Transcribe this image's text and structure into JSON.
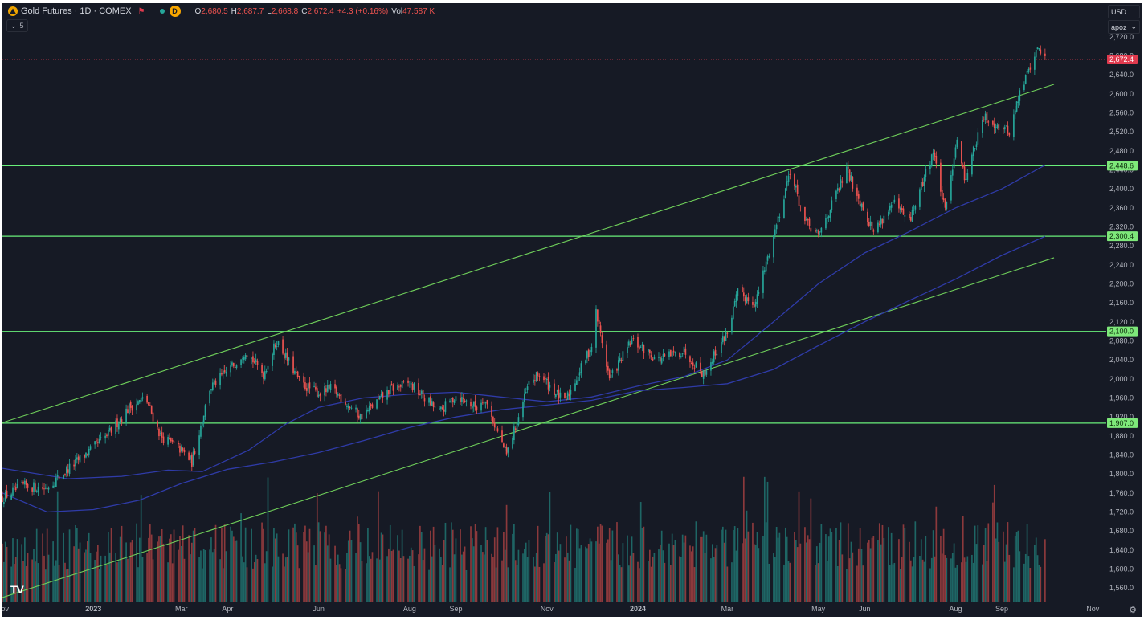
{
  "header": {
    "title": "Gold Futures · 1D · COMEX",
    "logo_letter": "⛰",
    "interval_badge": "D",
    "ohlc": [
      {
        "k": "O",
        "v": "2,680.5"
      },
      {
        "k": "H",
        "v": "2,687.7"
      },
      {
        "k": "L",
        "v": "2,668.8"
      },
      {
        "k": "C",
        "v": "2,672.4"
      },
      {
        "k": "",
        "v": "+4.3 (+0.16%)"
      },
      {
        "k": "Vol",
        "v": "47.587 K"
      }
    ],
    "indicator_toggle": "5"
  },
  "top_right": {
    "currency": "USD",
    "scale_mode": "apoz"
  },
  "colors": {
    "background": "#161a25",
    "up": "#26a69a",
    "down": "#ef5350",
    "level_line": "#69f07a",
    "channel_line": "#6fcf5a",
    "ma_line": "#2f3ba8",
    "axis_text": "#b2b5be",
    "last_price": "#e03a4e"
  },
  "chart_data": {
    "type": "candlestick",
    "symbol": "Gold Futures",
    "interval": "1D",
    "exchange": "COMEX",
    "ylim": [
      1540,
      2740
    ],
    "x_range": [
      "2022-11-01",
      "2024-11-10"
    ],
    "x_ticks": [
      {
        "date": "2022-11-01",
        "label": "Nov"
      },
      {
        "date": "2023-01-01",
        "label": "2023"
      },
      {
        "date": "2023-03-01",
        "label": "Mar"
      },
      {
        "date": "2023-04-01",
        "label": "Apr"
      },
      {
        "date": "2023-06-01",
        "label": "Jun"
      },
      {
        "date": "2023-08-01",
        "label": "Aug"
      },
      {
        "date": "2023-09-01",
        "label": "Sep"
      },
      {
        "date": "2023-11-01",
        "label": "Nov"
      },
      {
        "date": "2024-01-01",
        "label": "2024"
      },
      {
        "date": "2024-03-01",
        "label": "Mar"
      },
      {
        "date": "2024-05-01",
        "label": "May"
      },
      {
        "date": "2024-06-01",
        "label": "Jun"
      },
      {
        "date": "2024-08-01",
        "label": "Aug"
      },
      {
        "date": "2024-09-01",
        "label": "Sep"
      },
      {
        "date": "2024-11-01",
        "label": "Nov"
      }
    ],
    "y_ticks": [
      "2,720.0",
      "2,680.0",
      "2,640.0",
      "2,600.0",
      "2,560.0",
      "2,520.0",
      "2,480.0",
      "2,440.0",
      "2,400.0",
      "2,360.0",
      "2,320.0",
      "2,280.0",
      "2,240.0",
      "2,200.0",
      "2,160.0",
      "2,120.0",
      "2,080.0",
      "2,040.0",
      "2,000.0",
      "1,960.0",
      "1,920.0",
      "1,880.0",
      "1,840.0",
      "1,800.0",
      "1,760.0",
      "1,720.0",
      "1,680.0",
      "1,640.0",
      "1,600.0",
      "1,560.0"
    ],
    "price_path": [
      {
        "date": "2022-11-01",
        "close": 1750
      },
      {
        "date": "2022-11-15",
        "close": 1775
      },
      {
        "date": "2022-11-30",
        "close": 1770
      },
      {
        "date": "2022-12-15",
        "close": 1810
      },
      {
        "date": "2023-01-10",
        "close": 1880
      },
      {
        "date": "2023-01-25",
        "close": 1940
      },
      {
        "date": "2023-02-05",
        "close": 1960
      },
      {
        "date": "2023-02-15",
        "close": 1880
      },
      {
        "date": "2023-03-01",
        "close": 1850
      },
      {
        "date": "2023-03-08",
        "close": 1825
      },
      {
        "date": "2023-03-20",
        "close": 1980
      },
      {
        "date": "2023-04-05",
        "close": 2030
      },
      {
        "date": "2023-04-13",
        "close": 2060
      },
      {
        "date": "2023-04-25",
        "close": 2010
      },
      {
        "date": "2023-05-04",
        "close": 2080
      },
      {
        "date": "2023-05-20",
        "close": 1990
      },
      {
        "date": "2023-06-01",
        "close": 1970
      },
      {
        "date": "2023-06-10",
        "close": 1980
      },
      {
        "date": "2023-06-29",
        "close": 1920
      },
      {
        "date": "2023-07-20",
        "close": 1980
      },
      {
        "date": "2023-08-01",
        "close": 1990
      },
      {
        "date": "2023-08-21",
        "close": 1930
      },
      {
        "date": "2023-09-01",
        "close": 1965
      },
      {
        "date": "2023-09-15",
        "close": 1940
      },
      {
        "date": "2023-09-20",
        "close": 1960
      },
      {
        "date": "2023-10-05",
        "close": 1840
      },
      {
        "date": "2023-10-20",
        "close": 1990
      },
      {
        "date": "2023-10-27",
        "close": 2010
      },
      {
        "date": "2023-11-13",
        "close": 1950
      },
      {
        "date": "2023-12-01",
        "close": 2070
      },
      {
        "date": "2023-12-04",
        "close": 2140
      },
      {
        "date": "2023-12-13",
        "close": 2000
      },
      {
        "date": "2023-12-28",
        "close": 2080
      },
      {
        "date": "2024-01-15",
        "close": 2040
      },
      {
        "date": "2024-02-01",
        "close": 2060
      },
      {
        "date": "2024-02-14",
        "close": 2010
      },
      {
        "date": "2024-03-01",
        "close": 2100
      },
      {
        "date": "2024-03-08",
        "close": 2180
      },
      {
        "date": "2024-03-20",
        "close": 2160
      },
      {
        "date": "2024-04-05",
        "close": 2350
      },
      {
        "date": "2024-04-12",
        "close": 2440
      },
      {
        "date": "2024-04-22",
        "close": 2330
      },
      {
        "date": "2024-05-01",
        "close": 2300
      },
      {
        "date": "2024-05-20",
        "close": 2440
      },
      {
        "date": "2024-06-07",
        "close": 2310
      },
      {
        "date": "2024-06-20",
        "close": 2370
      },
      {
        "date": "2024-07-01",
        "close": 2330
      },
      {
        "date": "2024-07-17",
        "close": 2480
      },
      {
        "date": "2024-07-25",
        "close": 2350
      },
      {
        "date": "2024-08-02",
        "close": 2510
      },
      {
        "date": "2024-08-07",
        "close": 2420
      },
      {
        "date": "2024-08-20",
        "close": 2550
      },
      {
        "date": "2024-09-06",
        "close": 2520
      },
      {
        "date": "2024-09-13",
        "close": 2600
      },
      {
        "date": "2024-09-20",
        "close": 2660
      },
      {
        "date": "2024-09-26",
        "close": 2700
      },
      {
        "date": "2024-09-30",
        "close": 2672.4
      }
    ],
    "ma_fast": [
      {
        "date": "2022-11-01",
        "v": 1812
      },
      {
        "date": "2022-12-15",
        "v": 1790
      },
      {
        "date": "2023-01-20",
        "v": 1795
      },
      {
        "date": "2023-02-20",
        "v": 1808
      },
      {
        "date": "2023-03-15",
        "v": 1805
      },
      {
        "date": "2023-04-15",
        "v": 1850
      },
      {
        "date": "2023-05-10",
        "v": 1905
      },
      {
        "date": "2023-06-01",
        "v": 1940
      },
      {
        "date": "2023-07-01",
        "v": 1960
      },
      {
        "date": "2023-08-01",
        "v": 1968
      },
      {
        "date": "2023-09-01",
        "v": 1972
      },
      {
        "date": "2023-10-01",
        "v": 1962
      },
      {
        "date": "2023-11-01",
        "v": 1952
      },
      {
        "date": "2023-12-01",
        "v": 1962
      },
      {
        "date": "2024-01-01",
        "v": 1985
      },
      {
        "date": "2024-02-01",
        "v": 2005
      },
      {
        "date": "2024-03-01",
        "v": 2040
      },
      {
        "date": "2024-04-01",
        "v": 2120
      },
      {
        "date": "2024-05-01",
        "v": 2200
      },
      {
        "date": "2024-06-01",
        "v": 2265
      },
      {
        "date": "2024-07-01",
        "v": 2310
      },
      {
        "date": "2024-08-01",
        "v": 2360
      },
      {
        "date": "2024-09-01",
        "v": 2400
      },
      {
        "date": "2024-09-30",
        "v": 2450
      }
    ],
    "ma_slow": [
      {
        "date": "2022-11-01",
        "v": 1760
      },
      {
        "date": "2022-12-01",
        "v": 1720
      },
      {
        "date": "2023-01-01",
        "v": 1725
      },
      {
        "date": "2023-02-01",
        "v": 1745
      },
      {
        "date": "2023-03-01",
        "v": 1780
      },
      {
        "date": "2023-04-01",
        "v": 1810
      },
      {
        "date": "2023-05-01",
        "v": 1825
      },
      {
        "date": "2023-06-01",
        "v": 1845
      },
      {
        "date": "2023-07-01",
        "v": 1870
      },
      {
        "date": "2023-08-01",
        "v": 1898
      },
      {
        "date": "2023-09-01",
        "v": 1920
      },
      {
        "date": "2023-10-01",
        "v": 1935
      },
      {
        "date": "2023-11-01",
        "v": 1945
      },
      {
        "date": "2023-12-01",
        "v": 1955
      },
      {
        "date": "2024-01-01",
        "v": 1975
      },
      {
        "date": "2024-02-01",
        "v": 1982
      },
      {
        "date": "2024-03-01",
        "v": 1990
      },
      {
        "date": "2024-04-01",
        "v": 2020
      },
      {
        "date": "2024-05-01",
        "v": 2070
      },
      {
        "date": "2024-06-01",
        "v": 2120
      },
      {
        "date": "2024-07-01",
        "v": 2165
      },
      {
        "date": "2024-08-01",
        "v": 2210
      },
      {
        "date": "2024-09-01",
        "v": 2260
      },
      {
        "date": "2024-09-30",
        "v": 2300
      }
    ],
    "horizontal_levels": [
      {
        "value": 2448.6,
        "label": "2,448.6"
      },
      {
        "value": 2300.4,
        "label": "2,300.4"
      },
      {
        "value": 2100.0,
        "label": "2,100.0"
      },
      {
        "value": 1907.0,
        "label": "1,907.0"
      }
    ],
    "channel_lines": [
      {
        "from": {
          "date": "2022-11-01",
          "v": 1908
        },
        "to": {
          "date": "2024-10-06",
          "v": 2620
        }
      },
      {
        "from": {
          "date": "2022-11-01",
          "v": 1540
        },
        "to": {
          "date": "2024-10-06",
          "v": 2255
        }
      }
    ],
    "last_price": {
      "value": 2672.4,
      "label": "2,672.4"
    },
    "volume_scale_max": 100
  }
}
